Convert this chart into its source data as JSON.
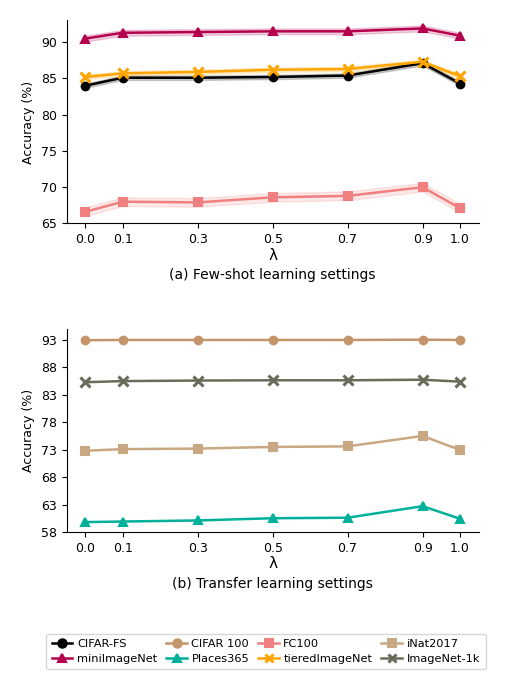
{
  "x": [
    0.0,
    0.1,
    0.3,
    0.5,
    0.7,
    0.9,
    1.0
  ],
  "few_shot": {
    "CIFAR-FS": {
      "y": [
        84.0,
        85.1,
        85.1,
        85.2,
        85.4,
        87.1,
        84.3
      ],
      "yerr": [
        0.3,
        0.3,
        0.3,
        0.3,
        0.3,
        0.3,
        0.3
      ],
      "color": "#000000",
      "marker": "o"
    },
    "miniImageNet": {
      "y": [
        90.5,
        91.3,
        91.4,
        91.5,
        91.5,
        91.9,
        90.9
      ],
      "yerr": [
        0.4,
        0.4,
        0.4,
        0.4,
        0.4,
        0.4,
        0.4
      ],
      "color": "#b5004e",
      "marker": "^"
    },
    "FC100": {
      "y": [
        66.6,
        68.0,
        67.9,
        68.6,
        68.8,
        70.0,
        67.1
      ],
      "yerr": [
        0.6,
        0.6,
        0.6,
        0.6,
        0.6,
        0.6,
        0.6
      ],
      "color": "#f08080",
      "marker": "s"
    },
    "tieredImageNet": {
      "y": [
        85.2,
        85.7,
        85.9,
        86.2,
        86.3,
        87.3,
        85.3
      ],
      "yerr": [
        0.3,
        0.3,
        0.3,
        0.3,
        0.3,
        0.3,
        0.3
      ],
      "color": "#ffa500",
      "marker": "x"
    }
  },
  "transfer": {
    "CIFAR 100": {
      "y": [
        92.95,
        93.0,
        93.0,
        93.0,
        93.0,
        93.05,
        93.0
      ],
      "color": "#c4956a",
      "marker": "o"
    },
    "Places365": {
      "y": [
        59.8,
        59.9,
        60.1,
        60.5,
        60.6,
        62.7,
        60.4
      ],
      "color": "#00b09b",
      "marker": "^"
    },
    "iNat2017": {
      "y": [
        72.8,
        73.1,
        73.2,
        73.5,
        73.6,
        75.5,
        72.95
      ],
      "color": "#c8a882",
      "marker": "s"
    },
    "ImageNet-1k": {
      "y": [
        85.3,
        85.5,
        85.6,
        85.65,
        85.65,
        85.75,
        85.4
      ],
      "color": "#6b6b5a",
      "marker": "x"
    }
  },
  "few_shot_ylim": [
    65,
    93
  ],
  "few_shot_yticks": [
    65,
    70,
    75,
    80,
    85,
    90
  ],
  "transfer_ylim": [
    58,
    95
  ],
  "transfer_yticks": [
    58,
    63,
    68,
    73,
    78,
    83,
    88,
    93
  ],
  "xlabel": "λ",
  "ylabel": "Accuracy (%)",
  "title_a": "(a) Few-shot learning settings",
  "title_b": "(b) Transfer learning settings",
  "legend_order": [
    [
      "CIFAR-FS",
      "#000000",
      "o"
    ],
    [
      "miniImageNet",
      "#b5004e",
      "^"
    ],
    [
      "CIFAR 100",
      "#c4956a",
      "o"
    ],
    [
      "Places365",
      "#00b09b",
      "^"
    ],
    [
      "FC100",
      "#f08080",
      "s"
    ],
    [
      "tieredImageNet",
      "#ffa500",
      "x"
    ],
    [
      "iNat2017",
      "#c8a882",
      "s"
    ],
    [
      "ImageNet-1k",
      "#6b6b5a",
      "x"
    ]
  ]
}
